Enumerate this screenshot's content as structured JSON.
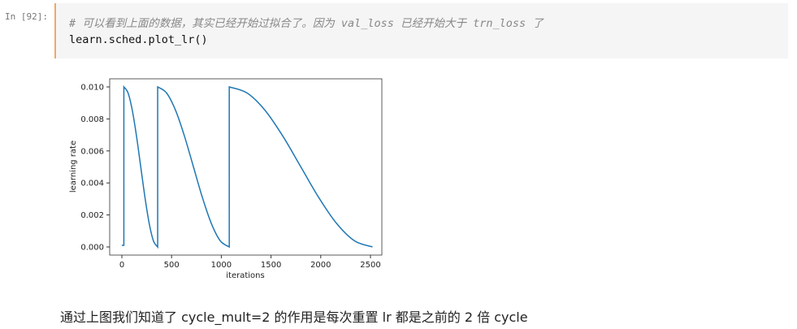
{
  "cell": {
    "prompt": "In [92]:",
    "comment": "# 可以看到上面的数据，其实已经开始过拟合了。因为 val_loss 已经开始大于 trn_loss 了",
    "code": "learn.sched.plot_lr()"
  },
  "caption": "通过上图我们知道了 cycle_mult=2 的作用是每次重置 lr 都是之前的 2 倍 cycle",
  "chart_data": {
    "type": "line",
    "title": "",
    "xlabel": "iterations",
    "ylabel": "learning rate",
    "xlim": [
      -80,
      2630
    ],
    "ylim": [
      -0.0005,
      0.0105
    ],
    "xticks": [
      0,
      500,
      1000,
      1500,
      2000,
      2500
    ],
    "xtick_labels": [
      "0",
      "500",
      "1000",
      "1500",
      "2000",
      "2500"
    ],
    "yticks": [
      0,
      0.002,
      0.004,
      0.006,
      0.008,
      0.01
    ],
    "ytick_labels": [
      "0.000",
      "0.002",
      "0.004",
      "0.006",
      "0.008",
      "0.010"
    ],
    "grid": false,
    "line_color": "#1f77b4",
    "segments": [
      {
        "x": [
          0,
          20
        ],
        "y": [
          0.0001,
          0.0001
        ]
      },
      {
        "x": [
          20,
          62.5,
          105,
          147.5,
          190,
          232.5,
          275,
          317.5,
          360
        ],
        "y": [
          0.01,
          0.009619,
          0.008536,
          0.006913,
          0.005,
          0.003087,
          0.001464,
          0.000381,
          0
        ]
      },
      {
        "x": [
          360,
          450,
          540,
          630,
          720,
          810,
          900,
          990,
          1080
        ],
        "y": [
          0.01,
          0.009619,
          0.008536,
          0.006913,
          0.005,
          0.003087,
          0.001464,
          0.000381,
          0
        ]
      },
      {
        "x": [
          1080,
          1260,
          1440,
          1620,
          1800,
          1980,
          2160,
          2340,
          2520
        ],
        "y": [
          0.01,
          0.009619,
          0.008536,
          0.006913,
          0.005,
          0.003087,
          0.001464,
          0.000381,
          0
        ]
      }
    ]
  }
}
